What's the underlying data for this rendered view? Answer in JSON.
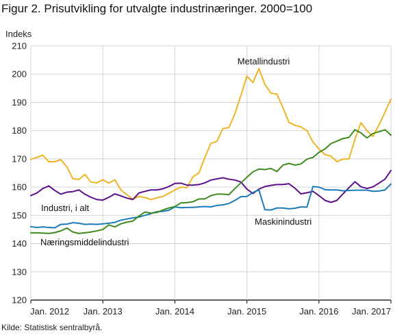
{
  "title": "Figur 2. Prisutvikling for utvalgte industrinæringer. 2000=100",
  "source": "Kilde: Statistisk sentralbyrå.",
  "chart_data": {
    "type": "line",
    "ylabel": "Indeks",
    "xlabel": "",
    "ylim": [
      120,
      210
    ],
    "yticks": [
      120,
      130,
      140,
      150,
      160,
      170,
      180,
      190,
      200,
      210
    ],
    "xlim": [
      0,
      60
    ],
    "xticks": [
      {
        "x": 0,
        "label": "Jan. 2012"
      },
      {
        "x": 12,
        "label": "Jan. 2013"
      },
      {
        "x": 24,
        "label": "Jan. 2014"
      },
      {
        "x": 36,
        "label": "Jan. 2015"
      },
      {
        "x": 48,
        "label": "Jan. 2016"
      },
      {
        "x": 60,
        "label": "Jan. 2017"
      }
    ],
    "grid": true,
    "legend": "inline labels",
    "series": [
      {
        "name": "Metallindustri",
        "color": "#f0b323",
        "values": [
          169.8,
          170.5,
          171.3,
          169.0,
          169.0,
          169.7,
          167.2,
          163.0,
          162.7,
          164.5,
          161.8,
          161.5,
          162.6,
          161.4,
          162.6,
          159.0,
          157.3,
          155.7,
          156.7,
          156.3,
          155.6,
          156.2,
          156.7,
          157.8,
          159.0,
          160.0,
          159.8,
          163.6,
          165.0,
          170.5,
          175.5,
          176.2,
          180.7,
          181.1,
          186.0,
          192.5,
          199.3,
          197.0,
          202.0,
          196.3,
          193.3,
          192.9,
          188.2,
          182.9,
          181.9,
          181.3,
          180.0,
          176.0,
          173.5,
          171.5,
          171.0,
          169.0,
          169.9,
          170.0,
          177.0,
          182.8,
          180.0,
          177.9,
          182.0,
          186.5,
          191.2
        ]
      },
      {
        "name": "Industri, i alt",
        "color": "#5c0f8b",
        "values": [
          157.0,
          157.9,
          159.5,
          160.4,
          158.8,
          157.5,
          158.2,
          158.4,
          159.0,
          157.5,
          156.4,
          155.6,
          155.4,
          156.4,
          157.6,
          156.9,
          156.1,
          155.6,
          157.9,
          158.5,
          159.0,
          159.0,
          159.4,
          160.2,
          161.3,
          161.4,
          160.7,
          160.7,
          160.9,
          161.5,
          162.5,
          162.9,
          163.3,
          162.8,
          162.5,
          161.8,
          159.3,
          157.7,
          159.3,
          160.2,
          160.6,
          160.9,
          160.9,
          161.2,
          159.6,
          157.6,
          158.0,
          158.5,
          157.0,
          155.3,
          154.6,
          155.3,
          157.6,
          159.8,
          161.9,
          160.1,
          159.5,
          160.1,
          161.4,
          162.8,
          165.9
        ]
      },
      {
        "name": "Maskinindustri",
        "color": "#1a7bb9",
        "values": [
          146.0,
          145.7,
          145.9,
          145.7,
          145.6,
          146.8,
          146.9,
          147.4,
          147.2,
          146.8,
          146.9,
          146.8,
          147.0,
          147.2,
          147.5,
          148.3,
          148.7,
          149.1,
          149.4,
          150.0,
          150.6,
          151.3,
          151.4,
          151.8,
          153.0,
          152.7,
          152.8,
          152.8,
          153.0,
          153.1,
          153.0,
          153.5,
          153.7,
          154.2,
          155.3,
          156.6,
          156.7,
          158.1,
          159.0,
          152.0,
          151.9,
          152.6,
          152.6,
          152.3,
          152.5,
          153.0,
          152.9,
          160.2,
          160.0,
          159.1,
          159.0,
          159.0,
          158.7,
          158.8,
          158.9,
          158.9,
          158.9,
          158.5,
          158.6,
          159.0,
          161.1
        ]
      },
      {
        "name": "Næringsmiddelindustri",
        "color": "#3d8b1e",
        "values": [
          143.8,
          143.8,
          143.7,
          143.6,
          143.9,
          144.5,
          145.5,
          144.1,
          143.6,
          143.8,
          144.1,
          144.5,
          145.0,
          146.6,
          145.9,
          147.0,
          147.6,
          148.0,
          149.7,
          151.2,
          150.8,
          151.0,
          151.9,
          152.6,
          153.1,
          154.4,
          154.5,
          154.8,
          155.8,
          155.8,
          157.0,
          157.5,
          157.5,
          157.3,
          159.5,
          161.5,
          163.5,
          165.4,
          166.4,
          166.2,
          166.6,
          165.5,
          167.8,
          168.4,
          167.8,
          168.2,
          169.9,
          170.5,
          172.3,
          173.5,
          175.4,
          176.3,
          177.2,
          177.6,
          180.3,
          179.2,
          177.4,
          179.0,
          179.6,
          180.3,
          178.4
        ]
      }
    ],
    "annotations": [
      {
        "text": "Metallindustri",
        "series": "Metallindustri"
      },
      {
        "text": "Industri, i alt",
        "series": "Industri, i alt"
      },
      {
        "text": "Maskinindustri",
        "series": "Maskinindustri"
      },
      {
        "text": "Næringsmiddelindustri",
        "series": "Næringsmiddelindustri"
      }
    ]
  }
}
